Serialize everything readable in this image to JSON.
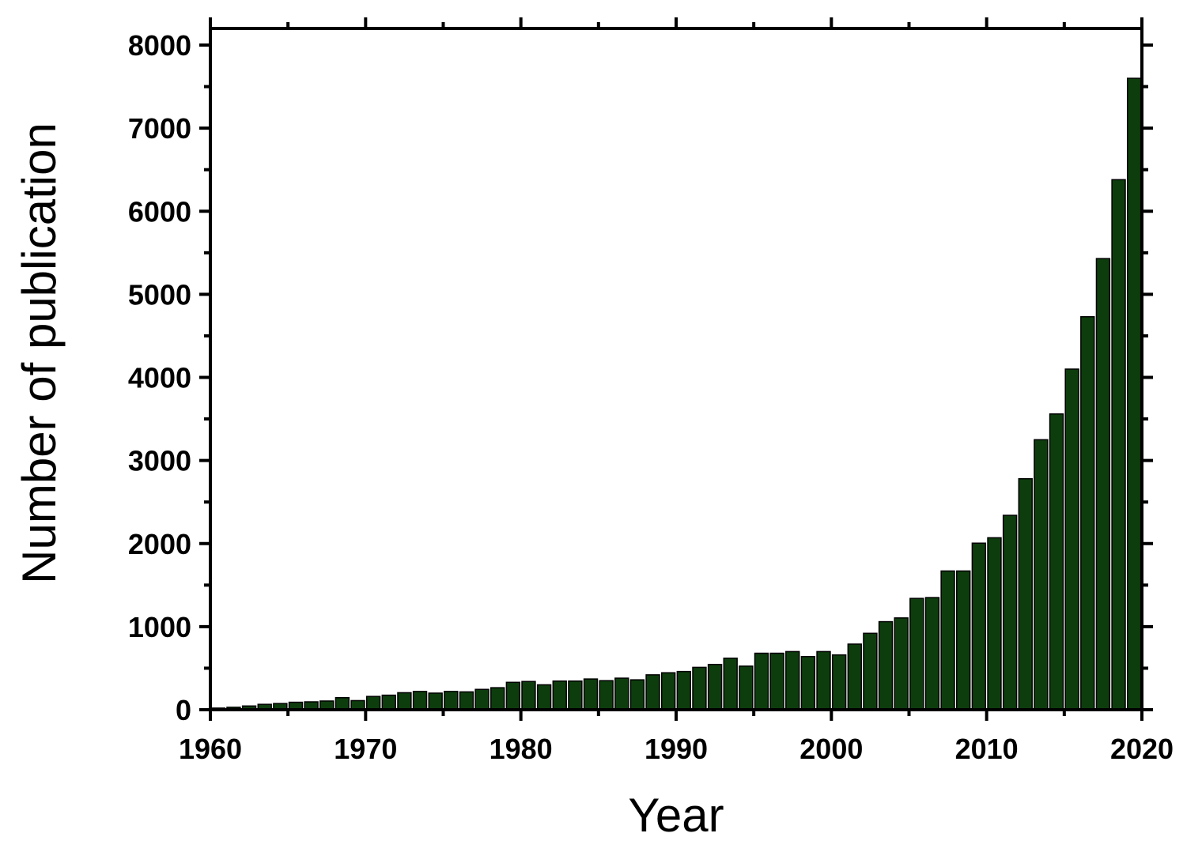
{
  "chart_data": {
    "type": "bar",
    "xlabel": "Year",
    "ylabel": "Number of publication",
    "xlim": [
      1960,
      2020
    ],
    "ylim": [
      0,
      8200
    ],
    "xticks": [
      1960,
      1970,
      1980,
      1990,
      2000,
      2010,
      2020
    ],
    "yticks": [
      0,
      1000,
      2000,
      3000,
      4000,
      5000,
      6000,
      7000,
      8000
    ],
    "grid": false,
    "bar_color": "#0d3d0d",
    "x": [
      1960,
      1961,
      1962,
      1963,
      1964,
      1965,
      1966,
      1967,
      1968,
      1969,
      1970,
      1971,
      1972,
      1973,
      1974,
      1975,
      1976,
      1977,
      1978,
      1979,
      1980,
      1981,
      1982,
      1983,
      1984,
      1985,
      1986,
      1987,
      1988,
      1989,
      1990,
      1991,
      1992,
      1993,
      1994,
      1995,
      1996,
      1997,
      1998,
      1999,
      2000,
      2001,
      2002,
      2003,
      2004,
      2005,
      2006,
      2007,
      2008,
      2009,
      2010,
      2011,
      2012,
      2013,
      2014,
      2015,
      2016,
      2017,
      2018,
      2019
    ],
    "values": [
      20,
      30,
      45,
      65,
      75,
      90,
      95,
      105,
      145,
      110,
      160,
      175,
      205,
      220,
      200,
      220,
      215,
      245,
      265,
      330,
      340,
      300,
      345,
      345,
      370,
      350,
      380,
      360,
      420,
      445,
      460,
      510,
      545,
      620,
      525,
      680,
      680,
      700,
      640,
      700,
      660,
      790,
      920,
      1060,
      1105,
      1340,
      1350,
      1670,
      1670,
      2005,
      2070,
      2340,
      2780,
      3250,
      3560,
      4100,
      4730,
      5430,
      6380,
      7600
    ]
  }
}
